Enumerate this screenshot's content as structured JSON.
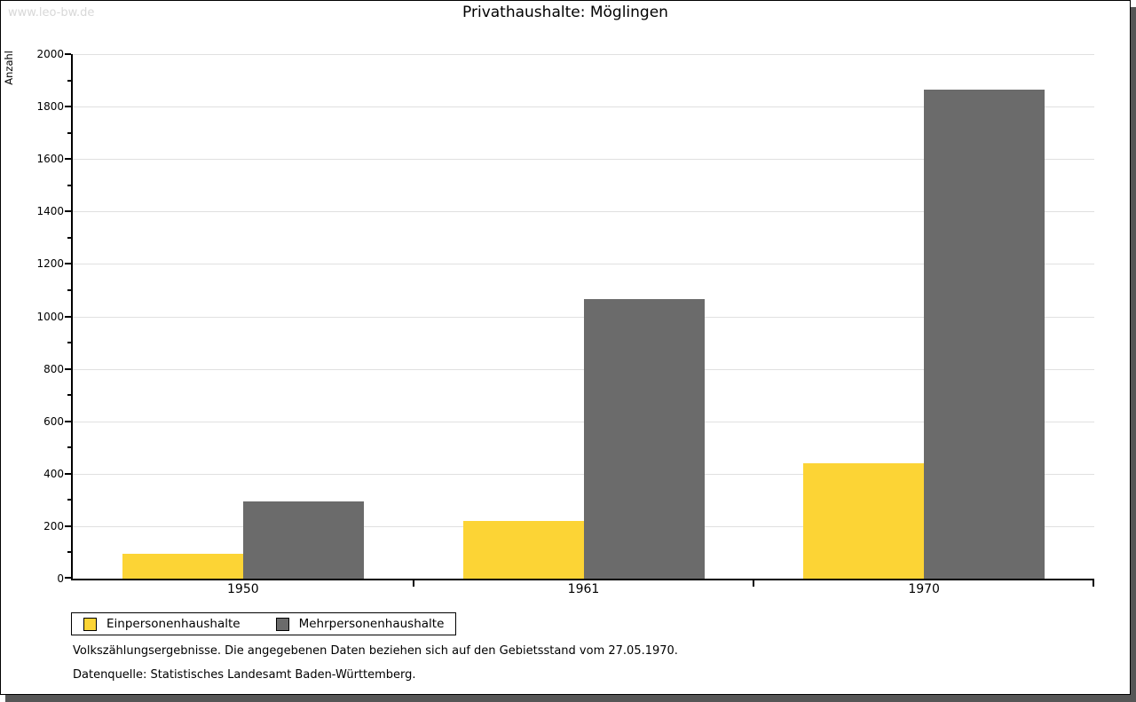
{
  "watermark": "www.leo-bw.de",
  "chart_data": {
    "type": "bar",
    "title": "Privathaushalte: Möglingen",
    "ylabel": "Anzahl",
    "categories": [
      "1950",
      "1961",
      "1970"
    ],
    "series": [
      {
        "name": "Einpersonenhaushalte",
        "color": "#FCD435",
        "values": [
          95,
          220,
          440
        ]
      },
      {
        "name": "Mehrpersonenhaushalte",
        "color": "#6B6B6B",
        "values": [
          295,
          1065,
          1865
        ]
      }
    ],
    "ylim": [
      0,
      2000
    ],
    "ytick_major": 200,
    "ytick_minor": 100,
    "grid": true,
    "legend_position": "bottom-left",
    "gridline_color": "#E0E0E0"
  },
  "footer": {
    "line1": "Volkszählungsergebnisse. Die angegebenen Daten beziehen sich auf den Gebietsstand vom 27.05.1970.",
    "line2": "Datenquelle: Statistisches Landesamt Baden-Württemberg."
  }
}
